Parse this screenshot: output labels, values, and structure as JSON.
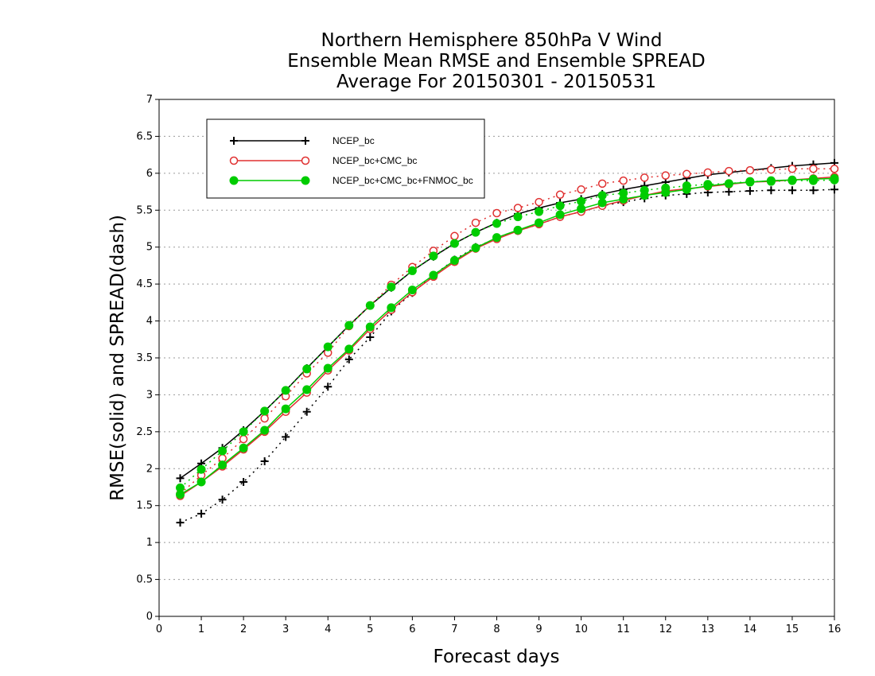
{
  "chart_data": {
    "type": "line",
    "title": [
      "Northern Hemisphere 850hPa V Wind",
      "Ensemble Mean RMSE and Ensemble SPREAD",
      "Average For 20150301 - 20150531"
    ],
    "xlabel": "Forecast days",
    "ylabel": "RMSE(solid) and SPREAD(dash)",
    "xlim": [
      0,
      16
    ],
    "ylim": [
      0,
      7
    ],
    "xticks": [
      "0",
      "1",
      "2",
      "3",
      "4",
      "5",
      "6",
      "7",
      "8",
      "9",
      "10",
      "11",
      "12",
      "13",
      "14",
      "15",
      "16"
    ],
    "yticks": [
      "0",
      "0.5",
      "1",
      "1.5",
      "2",
      "2.5",
      "3",
      "3.5",
      "4",
      "4.5",
      "5",
      "5.5",
      "6",
      "6.5",
      "7"
    ],
    "grid": true,
    "legend_position": "top-left",
    "x": [
      0.5,
      1,
      1.5,
      2,
      2.5,
      3,
      3.5,
      4,
      4.5,
      5,
      5.5,
      6,
      6.5,
      7,
      7.5,
      8,
      8.5,
      9,
      9.5,
      10,
      10.5,
      11,
      11.5,
      12,
      12.5,
      13,
      13.5,
      14,
      14.5,
      15,
      15.5,
      16
    ],
    "series": [
      {
        "name": "NCEP_bc",
        "color": "#000000",
        "marker": "plus",
        "rmse": [
          1.87,
          2.07,
          2.28,
          2.52,
          2.78,
          3.06,
          3.36,
          3.65,
          3.94,
          4.21,
          4.45,
          4.68,
          4.87,
          5.05,
          5.2,
          5.33,
          5.45,
          5.53,
          5.6,
          5.65,
          5.72,
          5.78,
          5.83,
          5.88,
          5.93,
          5.98,
          6.01,
          6.04,
          6.07,
          6.1,
          6.12,
          6.14
        ],
        "spread": [
          1.27,
          1.39,
          1.58,
          1.82,
          2.1,
          2.43,
          2.77,
          3.11,
          3.48,
          3.78,
          4.13,
          4.38,
          4.62,
          4.83,
          5.0,
          5.12,
          5.22,
          5.31,
          5.41,
          5.48,
          5.56,
          5.61,
          5.66,
          5.7,
          5.72,
          5.74,
          5.75,
          5.76,
          5.77,
          5.77,
          5.77,
          5.78
        ]
      },
      {
        "name": "NCEP_bc+CMC_bc",
        "color": "#e03030",
        "marker": "open-circle",
        "rmse": [
          1.63,
          1.82,
          2.03,
          2.26,
          2.5,
          2.77,
          3.03,
          3.33,
          3.6,
          3.89,
          4.15,
          4.39,
          4.6,
          4.8,
          4.98,
          5.11,
          5.22,
          5.31,
          5.41,
          5.48,
          5.56,
          5.63,
          5.7,
          5.76,
          5.79,
          5.82,
          5.85,
          5.88,
          5.89,
          5.91,
          5.93,
          5.95
        ],
        "spread": [
          1.66,
          1.91,
          2.14,
          2.4,
          2.68,
          2.98,
          3.29,
          3.57,
          3.93,
          4.21,
          4.49,
          4.73,
          4.95,
          5.15,
          5.33,
          5.46,
          5.53,
          5.61,
          5.71,
          5.78,
          5.86,
          5.9,
          5.94,
          5.97,
          5.99,
          6.01,
          6.03,
          6.04,
          6.05,
          6.06,
          6.06,
          6.06
        ]
      },
      {
        "name": "NCEP_bc+CMC_bc+FNMOC_bc",
        "color": "#00cc00",
        "marker": "filled-circle",
        "rmse": [
          1.65,
          1.82,
          2.05,
          2.28,
          2.52,
          2.81,
          3.07,
          3.36,
          3.62,
          3.92,
          4.18,
          4.42,
          4.62,
          4.82,
          4.99,
          5.13,
          5.23,
          5.33,
          5.44,
          5.52,
          5.6,
          5.65,
          5.7,
          5.74,
          5.78,
          5.83,
          5.86,
          5.88,
          5.9,
          5.91,
          5.92,
          5.93
        ],
        "spread": [
          1.74,
          1.99,
          2.24,
          2.5,
          2.78,
          3.06,
          3.35,
          3.65,
          3.94,
          4.21,
          4.46,
          4.68,
          4.88,
          5.05,
          5.2,
          5.32,
          5.41,
          5.48,
          5.56,
          5.62,
          5.7,
          5.73,
          5.77,
          5.8,
          5.83,
          5.85,
          5.86,
          5.89,
          5.89,
          5.9,
          5.9,
          5.91
        ]
      }
    ]
  }
}
